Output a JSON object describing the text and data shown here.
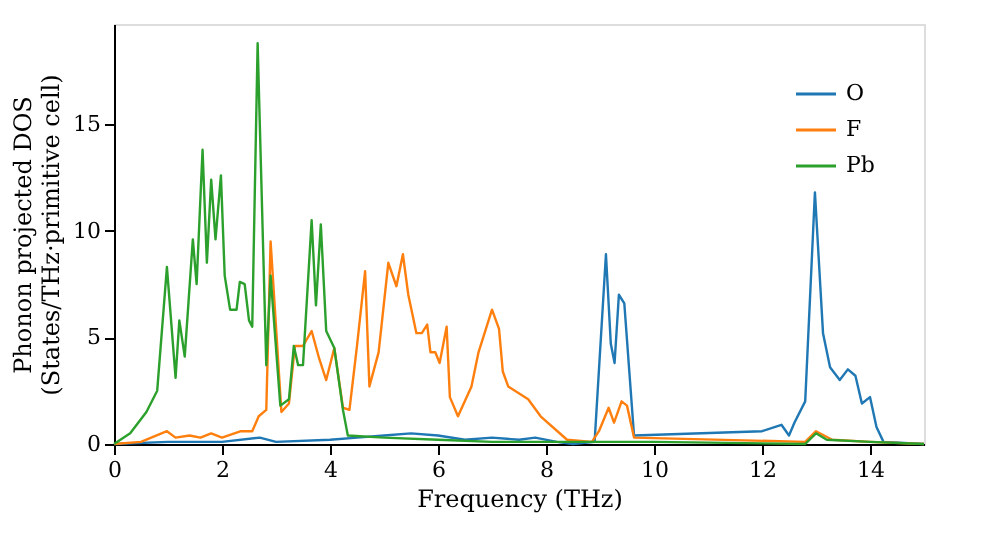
{
  "chart_data": {
    "type": "line",
    "xlabel": "Frequency (THz)",
    "ylabel": "Phonon projected DOS\n(States/THz·primitive cell)",
    "xlim": [
      0,
      15
    ],
    "ylim": [
      0,
      19.7
    ],
    "xticks": [
      0,
      2,
      4,
      6,
      8,
      10,
      12,
      14
    ],
    "yticks": [
      0,
      5,
      10,
      15
    ],
    "grid": false,
    "legend": "top right",
    "line_style": "solid",
    "marker": "none",
    "series": [
      {
        "name": "O",
        "color": "#1f77b4",
        "x": [
          0,
          1,
          2,
          2.7,
          3,
          4,
          4.5,
          5,
          5.5,
          6,
          6.5,
          7,
          7.5,
          7.8,
          8.2,
          8.5,
          8.9,
          9.11,
          9.2,
          9.27,
          9.35,
          9.45,
          9.63,
          12,
          12.36,
          12.5,
          12.6,
          12.8,
          12.98,
          13.13,
          13.26,
          13.44,
          13.59,
          13.73,
          13.85,
          14.0,
          14.12,
          14.25,
          15
        ],
        "values": [
          0,
          0.1,
          0.1,
          0.3,
          0.1,
          0.2,
          0.3,
          0.4,
          0.5,
          0.4,
          0.2,
          0.3,
          0.2,
          0.3,
          0.1,
          0,
          0.1,
          8.9,
          4.7,
          3.8,
          7.0,
          6.6,
          0.4,
          0.6,
          0.9,
          0.4,
          1.0,
          2.0,
          11.8,
          5.2,
          3.6,
          3.0,
          3.5,
          3.2,
          1.9,
          2.2,
          0.8,
          0.1,
          0
        ]
      },
      {
        "name": "F",
        "color": "#ff7f0e",
        "x": [
          0,
          0.5,
          0.98,
          1.14,
          1.4,
          1.6,
          1.8,
          2.0,
          2.35,
          2.56,
          2.68,
          2.82,
          2.9,
          3.1,
          3.24,
          3.35,
          3.5,
          3.66,
          3.8,
          3.93,
          4.08,
          4.24,
          4.36,
          4.5,
          4.65,
          4.73,
          4.9,
          5.08,
          5.23,
          5.35,
          5.45,
          5.6,
          5.7,
          5.8,
          5.86,
          5.95,
          6.03,
          6.16,
          6.22,
          6.37,
          6.62,
          6.75,
          7.0,
          7.13,
          7.2,
          7.3,
          7.67,
          7.9,
          8.39,
          8.85,
          8.98,
          9.16,
          9.26,
          9.4,
          9.5,
          9.63,
          12.8,
          13.0,
          13.3,
          14,
          15
        ],
        "values": [
          0,
          0.1,
          0.6,
          0.3,
          0.4,
          0.3,
          0.5,
          0.3,
          0.6,
          0.6,
          1.3,
          1.6,
          9.5,
          1.5,
          1.9,
          4.6,
          4.6,
          5.3,
          4.0,
          3.0,
          4.5,
          1.7,
          1.6,
          4.6,
          8.1,
          2.7,
          4.3,
          8.5,
          7.4,
          8.9,
          7.0,
          5.2,
          5.2,
          5.6,
          4.3,
          4.3,
          3.8,
          5.5,
          2.2,
          1.3,
          2.7,
          4.3,
          6.3,
          5.4,
          3.4,
          2.7,
          2.1,
          1.3,
          0.2,
          0.1,
          0.6,
          1.7,
          1.0,
          2.0,
          1.8,
          0.3,
          0.1,
          0.6,
          0.2,
          0.1,
          0
        ]
      },
      {
        "name": "Pb",
        "color": "#2ca02c",
        "x": [
          0,
          0.3,
          0.6,
          0.8,
          0.98,
          1.14,
          1.21,
          1.31,
          1.46,
          1.53,
          1.64,
          1.72,
          1.8,
          1.88,
          1.98,
          2.05,
          2.15,
          2.27,
          2.33,
          2.42,
          2.5,
          2.56,
          2.66,
          2.82,
          2.9,
          3.08,
          3.24,
          3.33,
          3.41,
          3.5,
          3.66,
          3.74,
          3.83,
          3.93,
          4.08,
          4.24,
          4.33,
          5,
          6,
          7,
          8,
          10,
          12.8,
          13.0,
          13.2,
          14,
          15
        ],
        "values": [
          0,
          0.5,
          1.5,
          2.5,
          8.3,
          3.1,
          5.8,
          4.1,
          9.6,
          7.5,
          13.8,
          8.5,
          12.4,
          9.6,
          12.6,
          7.9,
          6.3,
          6.3,
          7.6,
          7.5,
          5.8,
          5.5,
          18.8,
          3.7,
          7.9,
          1.8,
          2.1,
          4.6,
          3.7,
          3.7,
          10.5,
          6.5,
          10.3,
          5.3,
          4.5,
          1.6,
          0.4,
          0.3,
          0.2,
          0.1,
          0.1,
          0.1,
          0,
          0.5,
          0.2,
          0.1,
          0
        ]
      }
    ]
  }
}
